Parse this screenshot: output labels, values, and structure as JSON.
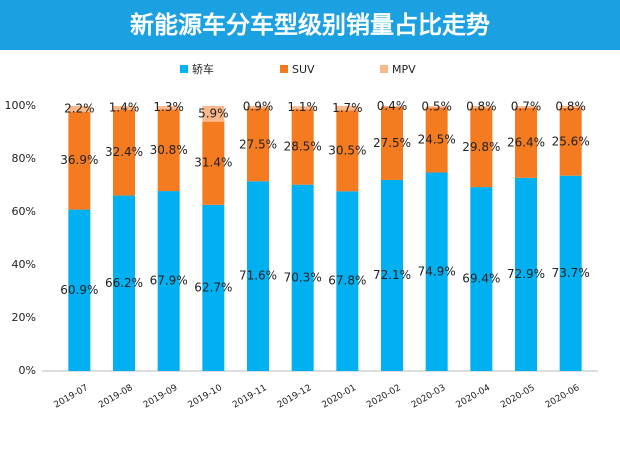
{
  "chart_data": {
    "type": "bar",
    "stacked": true,
    "title": "新能源车分车型级别销量占比走势",
    "categories": [
      "2019-07",
      "2019-08",
      "2019-09",
      "2019-10",
      "2019-11",
      "2019-12",
      "2020-01",
      "2020-02",
      "2020-03",
      "2020-04",
      "2020-05",
      "2020-06"
    ],
    "series": [
      {
        "name": "轿车",
        "color": "#00b0f0",
        "values": [
          60.9,
          66.2,
          67.9,
          62.7,
          71.6,
          70.3,
          67.8,
          72.1,
          74.9,
          69.4,
          72.9,
          73.7
        ],
        "value_labels": [
          "60.9%",
          "66.2%",
          "67.9%",
          "62.7%",
          "71.6%",
          "70.3%",
          "67.8%",
          "72.1%",
          "74.9%",
          "69.4%",
          "72.9%",
          "73.7%"
        ]
      },
      {
        "name": "SUV",
        "color": "#f47b20",
        "values": [
          36.9,
          32.4,
          30.8,
          31.4,
          27.5,
          28.5,
          30.5,
          27.5,
          24.5,
          29.8,
          26.4,
          25.6
        ],
        "value_labels": [
          "36.9%",
          "32.4%",
          "30.8%",
          "31.4%",
          "27.5%",
          "28.5%",
          "30.5%",
          "27.5%",
          "24.5%",
          "29.8%",
          "26.4%",
          "25.6%"
        ]
      },
      {
        "name": "MPV",
        "color": "#f8b88b",
        "values": [
          2.2,
          1.4,
          1.3,
          5.9,
          0.9,
          1.1,
          1.7,
          0.4,
          0.5,
          0.8,
          0.7,
          0.8
        ],
        "value_labels": [
          "2.2%",
          "1.4%",
          "1.3%",
          "5.9%",
          "0.9%",
          "1.1%",
          "1.7%",
          "0.4%",
          "0.5%",
          "0.8%",
          "0.7%",
          "0.8%"
        ]
      }
    ],
    "ylim": [
      0,
      100
    ],
    "yticks": [
      {
        "value": 0,
        "label": "0%"
      },
      {
        "value": 20,
        "label": "20%"
      },
      {
        "value": 40,
        "label": "40%"
      },
      {
        "value": 60,
        "label": "60%"
      },
      {
        "value": 80,
        "label": "80%"
      },
      {
        "value": 100,
        "label": "100%"
      }
    ],
    "legend": "top"
  }
}
